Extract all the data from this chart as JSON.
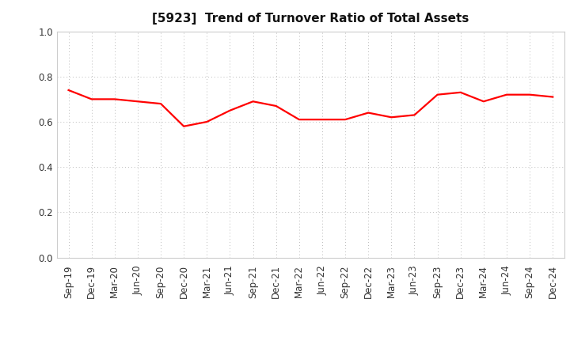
{
  "title": "[5923]  Trend of Turnover Ratio of Total Assets",
  "x_labels": [
    "Sep-19",
    "Dec-19",
    "Mar-20",
    "Jun-20",
    "Sep-20",
    "Dec-20",
    "Mar-21",
    "Jun-21",
    "Sep-21",
    "Dec-21",
    "Mar-22",
    "Jun-22",
    "Sep-22",
    "Dec-22",
    "Mar-23",
    "Jun-23",
    "Sep-23",
    "Dec-23",
    "Mar-24",
    "Jun-24",
    "Sep-24",
    "Dec-24"
  ],
  "y_values": [
    0.74,
    0.7,
    0.7,
    0.69,
    0.68,
    0.58,
    0.6,
    0.65,
    0.69,
    0.67,
    0.61,
    0.61,
    0.61,
    0.64,
    0.62,
    0.63,
    0.72,
    0.73,
    0.69,
    0.72,
    0.72,
    0.71
  ],
  "ylim": [
    0.0,
    1.0
  ],
  "yticks": [
    0.0,
    0.2,
    0.4,
    0.6,
    0.8,
    1.0
  ],
  "line_color": "#FF0000",
  "line_width": 1.6,
  "bg_color": "#FFFFFF",
  "grid_color": "#BBBBBB",
  "title_fontsize": 11,
  "tick_fontsize": 8.5,
  "axis_label_color": "#000000"
}
